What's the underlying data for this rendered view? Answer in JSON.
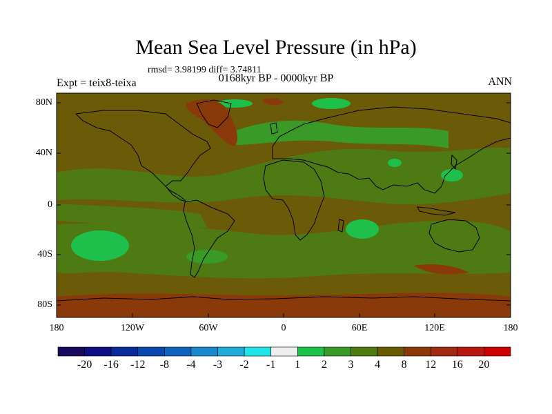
{
  "title": "Mean Sea Level Pressure (in hPa)",
  "stats": "rmsd= 3.98199  diff= 3.74811",
  "period": "0168kyr BP - 0000kyr BP",
  "experiment": "Expt = teix8-teixa",
  "season": "ANN",
  "lat_ticks": [
    "80N",
    "40N",
    "0",
    "40S",
    "80S"
  ],
  "lon_ticks": [
    "180",
    "120W",
    "60W",
    "0",
    "60E",
    "120E",
    "180"
  ],
  "colorbar": {
    "labels": [
      "-20",
      "-16",
      "-12",
      "-8",
      "-4",
      "-3",
      "-2",
      "-1",
      "1",
      "2",
      "3",
      "4",
      "8",
      "12",
      "16",
      "20"
    ],
    "colors": [
      "#1a0a5e",
      "#0c1080",
      "#0a2a9a",
      "#0a48b0",
      "#1064c0",
      "#1a88cc",
      "#20acd8",
      "#20e4e8",
      "#eeeeee",
      "#1ec04c",
      "#3a9a28",
      "#4e7a14",
      "#6a5a00",
      "#8a3a0a",
      "#a02a12",
      "#b81812",
      "#cc0000"
    ]
  },
  "colors": {
    "background_field": "#6b5a08",
    "positive_1_4": "#4e7a14",
    "positive_2_3": "#3a9a28",
    "strong_low": "#1ec04c",
    "high_12": "#8a3a0a"
  }
}
